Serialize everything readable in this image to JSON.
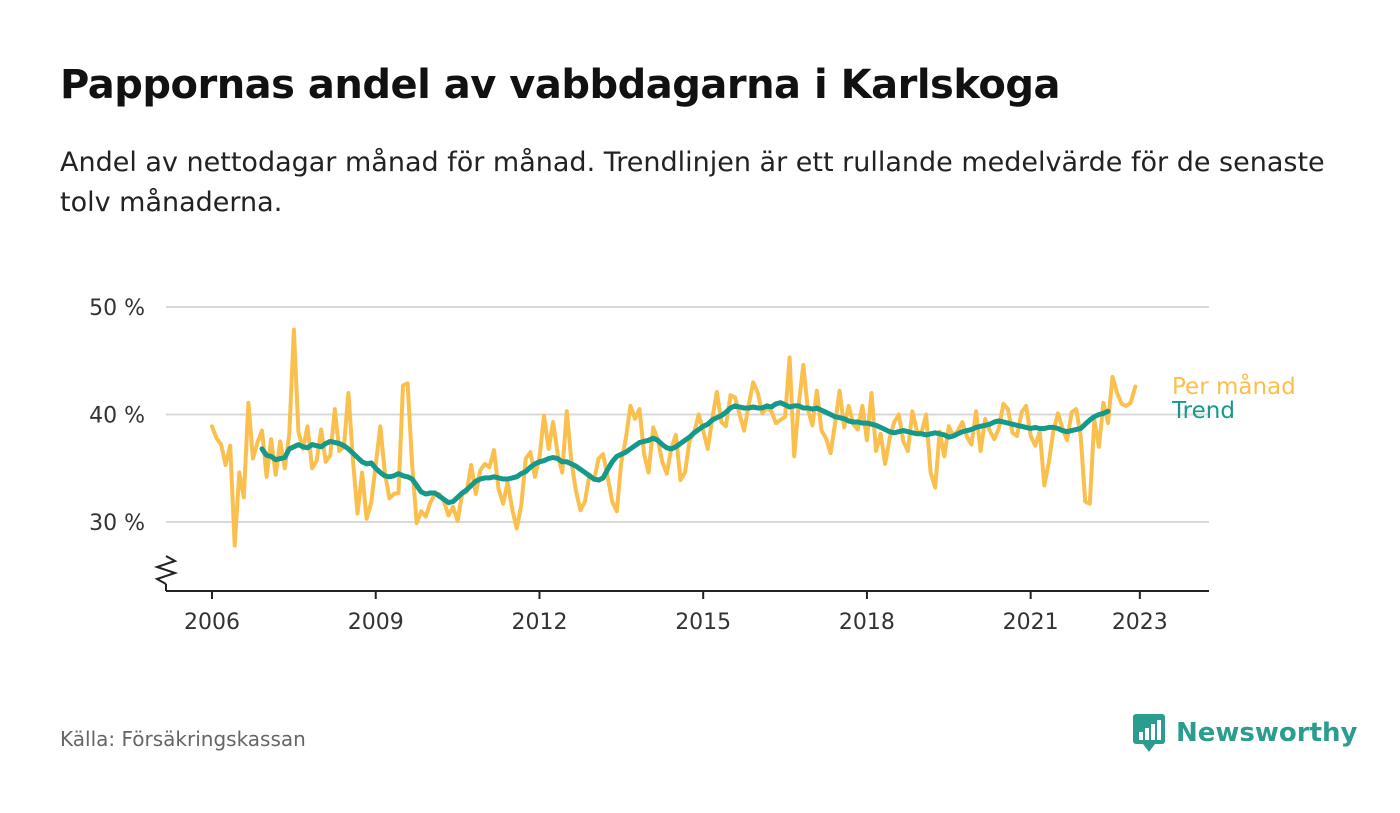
{
  "title": "Pappornas andel av vabbdagarna i Karlskoga",
  "subtitle": "Andel av nettodagar månad för månad. Trendlinjen är ett rullande medelvärde för de senaste tolv månaderna.",
  "source": "Källa: Försäkringskassan",
  "brand": {
    "name": "Newsworthy",
    "icon": "bar-chart-speech-bubble-icon",
    "color": "#2a9d8f"
  },
  "chart_data": {
    "type": "line",
    "title": "",
    "xlabel": "",
    "ylabel": "",
    "x_ticks": [
      2006,
      2009,
      2012,
      2015,
      2018,
      2021,
      2023
    ],
    "x_tick_labels": [
      "2006",
      "2009",
      "2012",
      "2015",
      "2018",
      "2021",
      "2023"
    ],
    "y_ticks": [
      30,
      40,
      50
    ],
    "y_tick_labels": [
      "30 %",
      "40 %",
      "50 %"
    ],
    "ylim": [
      24,
      50
    ],
    "xlim": [
      2005.75,
      2024.0
    ],
    "y_axis_break": true,
    "grid": "horizontal",
    "legend": "end-labels",
    "series": [
      {
        "name": "Per månad",
        "color": "#fbbf4e",
        "x_start": 2006.0,
        "step": 0.0833333,
        "values": [
          38.9,
          37.8,
          37.2,
          35.3,
          37.1,
          27.8,
          34.6,
          32.3,
          41.1,
          35.9,
          37.4,
          38.5,
          34.2,
          37.7,
          34.4,
          37.5,
          35.0,
          38.2,
          47.9,
          38.4,
          36.8,
          38.9,
          35.0,
          35.7,
          38.6,
          35.6,
          36.2,
          40.5,
          36.6,
          37.0,
          42.0,
          35.7,
          30.8,
          34.6,
          30.3,
          31.8,
          35.3,
          38.9,
          34.6,
          32.2,
          32.6,
          32.7,
          42.7,
          42.9,
          35.4,
          29.9,
          31.0,
          30.5,
          31.8,
          32.6,
          32.6,
          31.9,
          30.6,
          31.4,
          30.1,
          32.6,
          32.8,
          35.3,
          32.6,
          34.8,
          35.4,
          35.1,
          36.7,
          33.1,
          31.7,
          33.7,
          31.2,
          29.4,
          31.6,
          35.9,
          36.5,
          34.2,
          36.0,
          39.9,
          36.8,
          39.3,
          36.3,
          34.6,
          40.3,
          35.7,
          32.9,
          31.1,
          31.9,
          34.4,
          33.9,
          35.9,
          36.3,
          34.2,
          31.9,
          31.0,
          35.6,
          37.8,
          40.8,
          39.6,
          40.5,
          36.3,
          34.6,
          38.8,
          37.7,
          35.6,
          34.5,
          36.9,
          38.1,
          33.9,
          34.6,
          37.6,
          38.3,
          40.0,
          38.5,
          36.8,
          39.6,
          42.1,
          39.3,
          38.9,
          41.8,
          41.6,
          40.0,
          38.5,
          40.9,
          43.0,
          42.0,
          40.1,
          40.6,
          40.3,
          39.2,
          39.5,
          39.8,
          45.3,
          36.1,
          40.9,
          44.6,
          40.5,
          39.0,
          42.2,
          38.5,
          37.8,
          36.4,
          39.2,
          42.2,
          38.8,
          40.8,
          39.1,
          38.6,
          40.8,
          37.6,
          42.0,
          36.6,
          38.2,
          35.4,
          37.8,
          39.3,
          40.0,
          37.5,
          36.6,
          40.3,
          38.4,
          38.3,
          40.0,
          34.6,
          33.2,
          38.4,
          36.1,
          38.9,
          38.0,
          38.5,
          39.3,
          37.9,
          37.2,
          40.3,
          36.6,
          39.6,
          38.5,
          37.7,
          38.7,
          41.0,
          40.5,
          38.3,
          38.0,
          40.2,
          40.8,
          38.0,
          37.1,
          38.4,
          33.4,
          35.6,
          38.5,
          40.1,
          38.7,
          37.6,
          40.2,
          40.5,
          38.0,
          31.9,
          31.7,
          39.5,
          37.0,
          41.1,
          39.2,
          43.5,
          42.0,
          41.0,
          40.8,
          41.1,
          42.6
        ]
      },
      {
        "name": "Trend",
        "color": "#14998a",
        "x_start": 2006.9167,
        "step": 0.0833333,
        "values": [
          36.8,
          36.2,
          36.1,
          35.8,
          35.9,
          36.0,
          36.8,
          37.0,
          37.2,
          37.0,
          36.9,
          37.2,
          37.1,
          37.0,
          37.3,
          37.5,
          37.4,
          37.3,
          37.1,
          36.8,
          36.4,
          36.0,
          35.6,
          35.4,
          35.5,
          35.0,
          34.6,
          34.3,
          34.2,
          34.3,
          34.5,
          34.3,
          34.2,
          34.0,
          33.4,
          32.8,
          32.6,
          32.7,
          32.7,
          32.4,
          32.1,
          31.8,
          31.9,
          32.3,
          32.7,
          33.0,
          33.4,
          33.8,
          34.0,
          34.1,
          34.1,
          34.2,
          34.1,
          34.0,
          34.0,
          34.1,
          34.2,
          34.5,
          34.7,
          35.1,
          35.4,
          35.6,
          35.7,
          35.9,
          36.0,
          35.9,
          35.6,
          35.6,
          35.4,
          35.2,
          34.9,
          34.6,
          34.3,
          34.0,
          33.9,
          34.1,
          34.9,
          35.6,
          36.1,
          36.3,
          36.5,
          36.8,
          37.1,
          37.4,
          37.5,
          37.6,
          37.8,
          37.6,
          37.2,
          36.9,
          36.8,
          37.0,
          37.3,
          37.6,
          37.9,
          38.3,
          38.6,
          38.9,
          39.1,
          39.5,
          39.7,
          39.9,
          40.2,
          40.6,
          40.8,
          40.7,
          40.6,
          40.6,
          40.7,
          40.6,
          40.6,
          40.8,
          40.7,
          41.0,
          41.1,
          40.9,
          40.7,
          40.8,
          40.8,
          40.6,
          40.6,
          40.5,
          40.6,
          40.4,
          40.2,
          40.0,
          39.8,
          39.7,
          39.6,
          39.4,
          39.3,
          39.3,
          39.2,
          39.2,
          39.1,
          39.0,
          38.8,
          38.6,
          38.4,
          38.3,
          38.4,
          38.5,
          38.4,
          38.3,
          38.2,
          38.2,
          38.1,
          38.2,
          38.3,
          38.2,
          38.1,
          37.9,
          38.0,
          38.2,
          38.4,
          38.5,
          38.6,
          38.8,
          38.9,
          39.0,
          39.1,
          39.3,
          39.4,
          39.3,
          39.2,
          39.1,
          39.0,
          38.9,
          38.8,
          38.7,
          38.8,
          38.7,
          38.7,
          38.8,
          38.8,
          38.7,
          38.5,
          38.4,
          38.5,
          38.6,
          38.7,
          39.1,
          39.5,
          39.8,
          40.0,
          40.1,
          40.3
        ]
      }
    ]
  }
}
